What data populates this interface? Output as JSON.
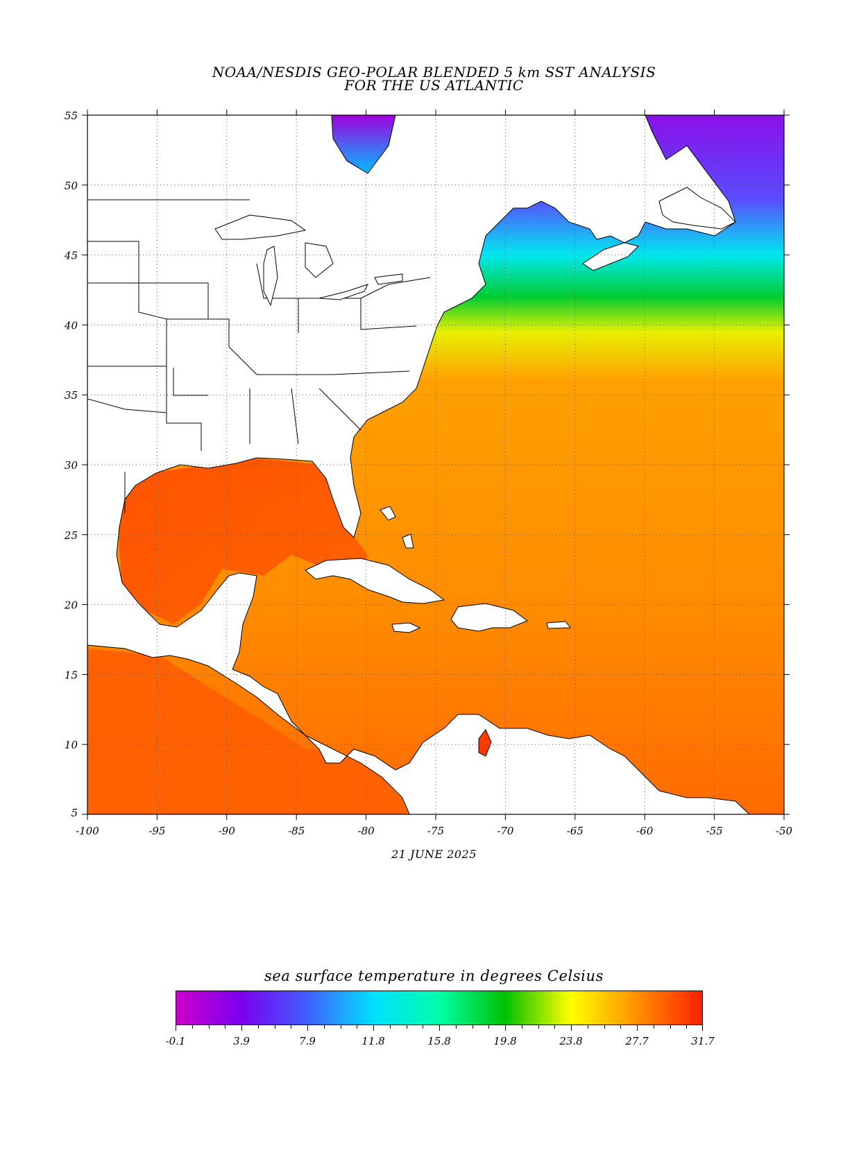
{
  "title_line1": "NOAA/NESDIS GEO-POLAR BLENDED 5 km SST ANALYSIS",
  "title_line2": "FOR THE US ATLANTIC",
  "date": "21 JUNE 2025",
  "map": {
    "lon_range": [
      -100,
      -50
    ],
    "lat_range": [
      5,
      55
    ],
    "lon_ticks": [
      "-100",
      "-95",
      "-90",
      "-85",
      "-80",
      "-75",
      "-70",
      "-65",
      "-60",
      "-55",
      "-50"
    ],
    "lat_ticks": [
      "55",
      "50",
      "45",
      "40",
      "35",
      "30",
      "25",
      "20",
      "15",
      "10",
      "5"
    ],
    "grid": "dotted"
  },
  "colorbar": {
    "title": "sea surface temperature in degrees Celsius",
    "labels": [
      "-0.1",
      "3.9",
      "7.9",
      "11.8",
      "15.8",
      "19.8",
      "23.8",
      "27.7",
      "31.7"
    ],
    "colors": [
      "#cc00cc",
      "#7a00ee",
      "#3f60ff",
      "#00e0ff",
      "#00ffaa",
      "#00c000",
      "#ffff00",
      "#ff9000",
      "#ff2000"
    ]
  }
}
